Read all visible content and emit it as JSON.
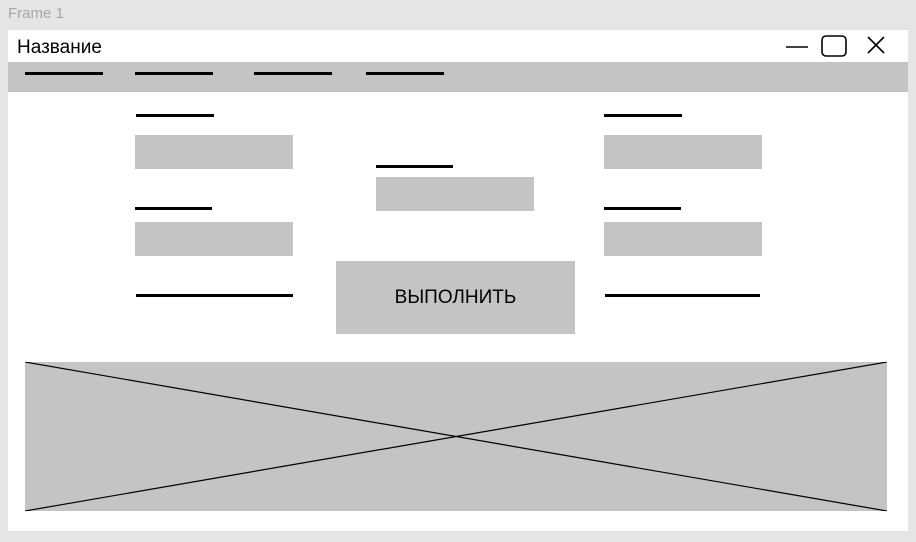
{
  "frame": {
    "label": "Frame 1"
  },
  "window": {
    "title": "Название",
    "controls": {
      "minimize_icon": "minimize-icon",
      "maximize_icon": "maximize-icon",
      "close_icon": "close-icon"
    }
  },
  "main": {
    "run_button_label": "ВЫПОЛНИТЬ",
    "fields": [
      {
        "value": ""
      },
      {
        "value": ""
      },
      {
        "value": ""
      },
      {
        "value": ""
      },
      {
        "value": ""
      }
    ]
  },
  "colors": {
    "canvas": "#e5e5e5",
    "window": "#ffffff",
    "placeholder_fill": "#c4c4c4",
    "line": "#000000",
    "frame_label": "#a6a6a6"
  }
}
